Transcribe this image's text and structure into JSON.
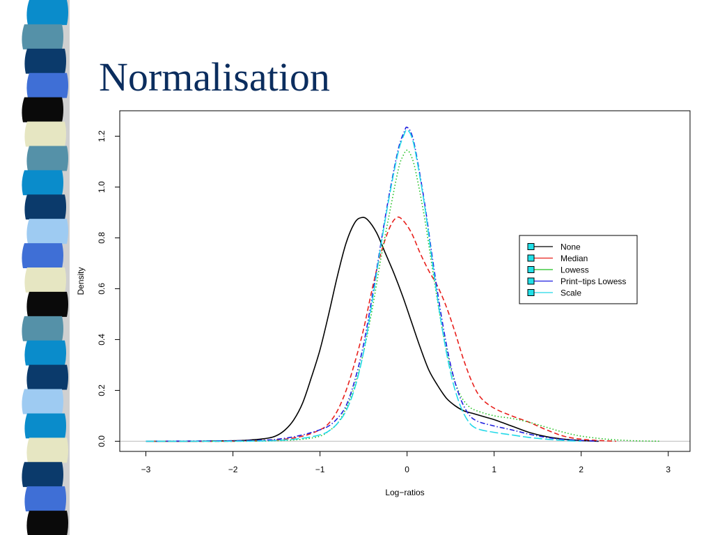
{
  "slide": {
    "title": "Normalisation"
  },
  "chart_data": {
    "type": "line",
    "title": "",
    "xlabel": "Log−ratios",
    "ylabel": "Density",
    "xlim": [
      -3.3,
      3.25
    ],
    "ylim": [
      -0.04,
      1.3
    ],
    "xticks": [
      -3,
      -2,
      -1,
      0,
      1,
      2,
      3
    ],
    "xtick_labels": [
      "−3",
      "−2",
      "−1",
      "0",
      "1",
      "2",
      "3"
    ],
    "yticks": [
      0.0,
      0.2,
      0.4,
      0.6,
      0.8,
      1.0,
      1.2
    ],
    "ytick_labels": [
      "0.0",
      "0.2",
      "0.4",
      "0.6",
      "0.8",
      "1.0",
      "1.2"
    ],
    "grid": false,
    "legend_position": "right",
    "series": [
      {
        "name": "None",
        "color": "#000000",
        "style": "solid",
        "points": [
          [
            -3.0,
            0.0
          ],
          [
            -2.5,
            0.0
          ],
          [
            -2.0,
            0.002
          ],
          [
            -1.8,
            0.005
          ],
          [
            -1.6,
            0.012
          ],
          [
            -1.5,
            0.022
          ],
          [
            -1.4,
            0.045
          ],
          [
            -1.3,
            0.085
          ],
          [
            -1.2,
            0.15
          ],
          [
            -1.1,
            0.25
          ],
          [
            -1.0,
            0.36
          ],
          [
            -0.9,
            0.5
          ],
          [
            -0.8,
            0.65
          ],
          [
            -0.7,
            0.78
          ],
          [
            -0.6,
            0.86
          ],
          [
            -0.52,
            0.88
          ],
          [
            -0.45,
            0.87
          ],
          [
            -0.35,
            0.82
          ],
          [
            -0.25,
            0.74
          ],
          [
            -0.15,
            0.66
          ],
          [
            -0.05,
            0.57
          ],
          [
            0.05,
            0.47
          ],
          [
            0.15,
            0.37
          ],
          [
            0.25,
            0.28
          ],
          [
            0.35,
            0.22
          ],
          [
            0.45,
            0.17
          ],
          [
            0.55,
            0.14
          ],
          [
            0.65,
            0.12
          ],
          [
            0.75,
            0.11
          ],
          [
            0.9,
            0.095
          ],
          [
            1.0,
            0.085
          ],
          [
            1.2,
            0.06
          ],
          [
            1.4,
            0.035
          ],
          [
            1.6,
            0.018
          ],
          [
            1.8,
            0.008
          ],
          [
            2.0,
            0.003
          ],
          [
            2.2,
            0.0
          ]
        ]
      },
      {
        "name": "Median",
        "color": "#e8201c",
        "style": "dashed",
        "points": [
          [
            -3.0,
            0.0
          ],
          [
            -2.0,
            0.0
          ],
          [
            -1.5,
            0.005
          ],
          [
            -1.2,
            0.02
          ],
          [
            -1.0,
            0.045
          ],
          [
            -0.9,
            0.07
          ],
          [
            -0.8,
            0.12
          ],
          [
            -0.7,
            0.2
          ],
          [
            -0.6,
            0.31
          ],
          [
            -0.5,
            0.44
          ],
          [
            -0.4,
            0.6
          ],
          [
            -0.3,
            0.74
          ],
          [
            -0.2,
            0.84
          ],
          [
            -0.12,
            0.88
          ],
          [
            -0.05,
            0.87
          ],
          [
            0.05,
            0.82
          ],
          [
            0.15,
            0.74
          ],
          [
            0.25,
            0.67
          ],
          [
            0.35,
            0.61
          ],
          [
            0.45,
            0.53
          ],
          [
            0.55,
            0.43
          ],
          [
            0.65,
            0.32
          ],
          [
            0.75,
            0.23
          ],
          [
            0.85,
            0.17
          ],
          [
            1.0,
            0.13
          ],
          [
            1.2,
            0.1
          ],
          [
            1.4,
            0.075
          ],
          [
            1.6,
            0.045
          ],
          [
            1.8,
            0.02
          ],
          [
            2.0,
            0.008
          ],
          [
            2.2,
            0.003
          ],
          [
            2.4,
            0.0
          ]
        ]
      },
      {
        "name": "Lowess",
        "color": "#1fbf1f",
        "style": "dotted",
        "points": [
          [
            -3.0,
            0.0
          ],
          [
            -2.0,
            0.0
          ],
          [
            -1.5,
            0.002
          ],
          [
            -1.2,
            0.008
          ],
          [
            -1.0,
            0.02
          ],
          [
            -0.9,
            0.04
          ],
          [
            -0.8,
            0.07
          ],
          [
            -0.7,
            0.13
          ],
          [
            -0.6,
            0.22
          ],
          [
            -0.5,
            0.35
          ],
          [
            -0.4,
            0.52
          ],
          [
            -0.3,
            0.72
          ],
          [
            -0.2,
            0.9
          ],
          [
            -0.1,
            1.07
          ],
          [
            -0.05,
            1.12
          ],
          [
            0.0,
            1.145
          ],
          [
            0.05,
            1.12
          ],
          [
            0.1,
            1.06
          ],
          [
            0.2,
            0.88
          ],
          [
            0.3,
            0.66
          ],
          [
            0.4,
            0.45
          ],
          [
            0.5,
            0.29
          ],
          [
            0.6,
            0.19
          ],
          [
            0.7,
            0.14
          ],
          [
            0.8,
            0.12
          ],
          [
            1.0,
            0.1
          ],
          [
            1.2,
            0.09
          ],
          [
            1.4,
            0.075
          ],
          [
            1.6,
            0.055
          ],
          [
            1.8,
            0.035
          ],
          [
            2.0,
            0.02
          ],
          [
            2.3,
            0.008
          ],
          [
            2.6,
            0.002
          ],
          [
            2.9,
            0.0
          ]
        ]
      },
      {
        "name": "Print−tips Lowess",
        "color": "#1f1fdf",
        "style": "dashdot",
        "points": [
          [
            -3.0,
            0.0
          ],
          [
            -2.0,
            0.002
          ],
          [
            -1.6,
            0.005
          ],
          [
            -1.4,
            0.012
          ],
          [
            -1.2,
            0.025
          ],
          [
            -1.0,
            0.045
          ],
          [
            -0.9,
            0.06
          ],
          [
            -0.8,
            0.09
          ],
          [
            -0.7,
            0.14
          ],
          [
            -0.6,
            0.24
          ],
          [
            -0.5,
            0.38
          ],
          [
            -0.4,
            0.57
          ],
          [
            -0.3,
            0.78
          ],
          [
            -0.2,
            0.98
          ],
          [
            -0.1,
            1.15
          ],
          [
            -0.03,
            1.22
          ],
          [
            0.0,
            1.235
          ],
          [
            0.05,
            1.21
          ],
          [
            0.1,
            1.14
          ],
          [
            0.2,
            0.94
          ],
          [
            0.3,
            0.7
          ],
          [
            0.4,
            0.48
          ],
          [
            0.5,
            0.3
          ],
          [
            0.6,
            0.18
          ],
          [
            0.7,
            0.11
          ],
          [
            0.8,
            0.08
          ],
          [
            1.0,
            0.06
          ],
          [
            1.2,
            0.045
          ],
          [
            1.4,
            0.028
          ],
          [
            1.6,
            0.015
          ],
          [
            1.8,
            0.007
          ],
          [
            2.0,
            0.003
          ],
          [
            2.2,
            0.0
          ]
        ]
      },
      {
        "name": "Scale",
        "color": "#22d8e8",
        "style": "longdash",
        "points": [
          [
            -3.0,
            0.0
          ],
          [
            -2.0,
            0.0
          ],
          [
            -1.5,
            0.003
          ],
          [
            -1.2,
            0.012
          ],
          [
            -1.0,
            0.025
          ],
          [
            -0.9,
            0.04
          ],
          [
            -0.8,
            0.07
          ],
          [
            -0.7,
            0.12
          ],
          [
            -0.6,
            0.21
          ],
          [
            -0.5,
            0.35
          ],
          [
            -0.4,
            0.55
          ],
          [
            -0.3,
            0.77
          ],
          [
            -0.2,
            0.97
          ],
          [
            -0.1,
            1.14
          ],
          [
            -0.03,
            1.21
          ],
          [
            0.0,
            1.225
          ],
          [
            0.05,
            1.2
          ],
          [
            0.1,
            1.13
          ],
          [
            0.2,
            0.93
          ],
          [
            0.3,
            0.68
          ],
          [
            0.4,
            0.45
          ],
          [
            0.5,
            0.27
          ],
          [
            0.6,
            0.15
          ],
          [
            0.7,
            0.08
          ],
          [
            0.8,
            0.05
          ],
          [
            1.0,
            0.035
          ],
          [
            1.2,
            0.025
          ],
          [
            1.4,
            0.015
          ],
          [
            1.6,
            0.008
          ],
          [
            1.8,
            0.003
          ],
          [
            2.0,
            0.0
          ]
        ]
      }
    ]
  },
  "decor": {
    "strip_colors": [
      "#0a8ccb",
      "#5591a8",
      "#0b3a6b",
      "#3f6fd6",
      "#0a0a0a",
      "#e6e6c2",
      "#5591a8",
      "#0a8ccb",
      "#0b3a6b",
      "#9ecbf2",
      "#3f6fd6",
      "#e6e6c2",
      "#0a0a0a",
      "#5591a8",
      "#0a8ccb",
      "#0b3a6b",
      "#9ecbf2",
      "#0a8ccb",
      "#e6e6c2",
      "#0b3a6b",
      "#3f6fd6",
      "#0a0a0a"
    ]
  }
}
